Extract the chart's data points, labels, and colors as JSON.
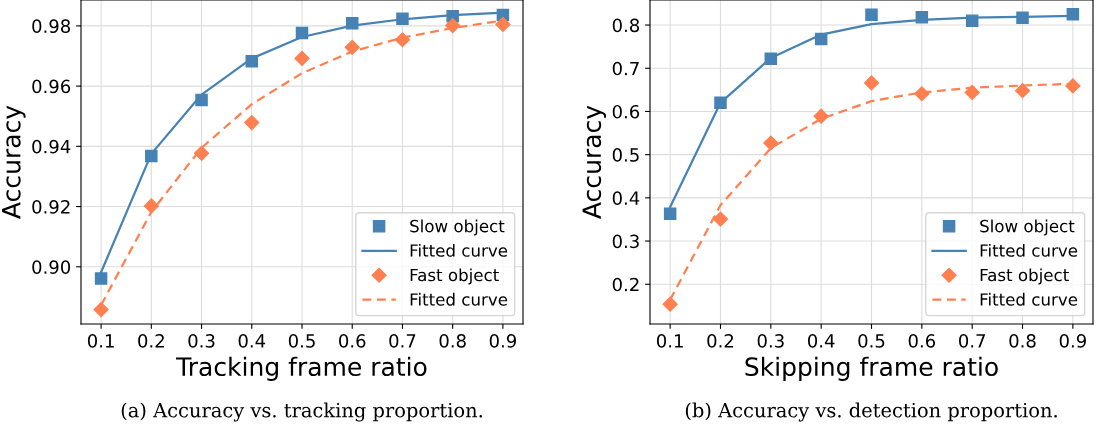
{
  "chart_data": [
    {
      "type": "line",
      "xlabel": "Tracking frame ratio",
      "ylabel": "Accuracy",
      "x": [
        0.1,
        0.2,
        0.3,
        0.4,
        0.5,
        0.6,
        0.7,
        0.8,
        0.9
      ],
      "xlim": [
        0.06,
        0.94
      ],
      "xticks": [
        0.1,
        0.2,
        0.3,
        0.4,
        0.5,
        0.6,
        0.7,
        0.8,
        0.9
      ],
      "ylim": [
        0.881,
        0.9886
      ],
      "yticks": [
        {
          "value": 0.9,
          "label": "0.90"
        },
        {
          "value": 0.92,
          "label": "0.92"
        },
        {
          "value": 0.94,
          "label": "0.94"
        },
        {
          "value": 0.96,
          "label": "0.96"
        },
        {
          "value": 0.98,
          "label": "0.98"
        }
      ],
      "grid": true,
      "legend": "bottom right",
      "annotations": [
        "(a) Accuracy vs. tracking proportion."
      ],
      "series": [
        {
          "name": "Slow object",
          "type": "scatter",
          "marker": "square",
          "color": "#4682b4",
          "values": [
            0.8961,
            0.9368,
            0.9554,
            0.9683,
            0.9776,
            0.9809,
            0.9824,
            0.9832,
            0.9836
          ]
        },
        {
          "name": "Fitted curve",
          "line_style": "solid",
          "color": "#4682b4",
          "values": [
            0.8982,
            0.9375,
            0.9572,
            0.9692,
            0.9763,
            0.9801,
            0.9822,
            0.9836,
            0.9844
          ]
        },
        {
          "name": "Fast object",
          "type": "scatter",
          "marker": "diamond",
          "color": "#ff7f50",
          "values": [
            0.8858,
            0.9202,
            0.9377,
            0.9479,
            0.9692,
            0.9729,
            0.9754,
            0.9801,
            0.9805
          ]
        },
        {
          "name": "Fitted curve",
          "line_style": "dashed",
          "color": "#ff7f50",
          "values": [
            0.8873,
            0.9182,
            0.9395,
            0.954,
            0.9643,
            0.9715,
            0.9761,
            0.9793,
            0.9818
          ]
        }
      ]
    },
    {
      "type": "line",
      "xlabel": "Skipping frame ratio",
      "ylabel": "Accuracy",
      "x": [
        0.1,
        0.2,
        0.3,
        0.4,
        0.5,
        0.6,
        0.7,
        0.8,
        0.9
      ],
      "xlim": [
        0.06,
        0.94
      ],
      "xticks": [
        0.1,
        0.2,
        0.3,
        0.4,
        0.5,
        0.6,
        0.7,
        0.8,
        0.9
      ],
      "ylim": [
        0.108,
        0.858
      ],
      "yticks": [
        0.2,
        0.3,
        0.4,
        0.5,
        0.6,
        0.7,
        0.8
      ],
      "grid": true,
      "legend": "bottom right",
      "annotations": [
        "(b) Accuracy vs. detection proportion."
      ],
      "series": [
        {
          "name": "Slow object",
          "type": "scatter",
          "marker": "square",
          "color": "#4682b4",
          "values": [
            0.363,
            0.62,
            0.722,
            0.768,
            0.824,
            0.818,
            0.81,
            0.817,
            0.825
          ]
        },
        {
          "name": "Fitted curve",
          "line_style": "solid",
          "color": "#4682b4",
          "values": [
            0.379,
            0.62,
            0.724,
            0.778,
            0.802,
            0.812,
            0.817,
            0.819,
            0.821
          ]
        },
        {
          "name": "Fast object",
          "type": "scatter",
          "marker": "diamond",
          "color": "#ff7f50",
          "values": [
            0.154,
            0.351,
            0.527,
            0.589,
            0.666,
            0.641,
            0.644,
            0.648,
            0.659
          ]
        },
        {
          "name": "Fitted curve",
          "line_style": "dashed",
          "color": "#ff7f50",
          "values": [
            0.164,
            0.383,
            0.515,
            0.583,
            0.624,
            0.644,
            0.655,
            0.66,
            0.664
          ]
        }
      ]
    }
  ]
}
